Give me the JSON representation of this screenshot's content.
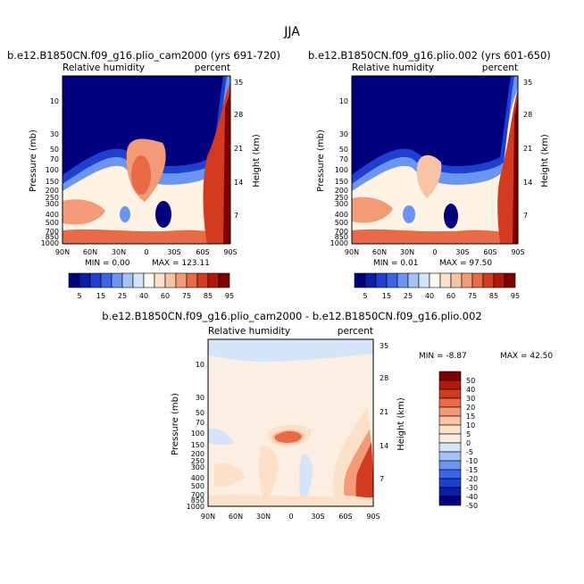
{
  "figure": {
    "title": "JJA"
  },
  "colors": {
    "abs_scale": [
      "#00007f",
      "#0a1fa6",
      "#1f3fd0",
      "#3a66e6",
      "#6a95f0",
      "#a6c2f5",
      "#d6e4fa",
      "#fff8ef",
      "#fde0c8",
      "#f9c4a4",
      "#f39b77",
      "#e86a47",
      "#d23b1f",
      "#b3190b",
      "#7f0000"
    ],
    "diff_scale": [
      "#00007f",
      "#0a1fa6",
      "#1f3fd0",
      "#3a66e6",
      "#6a95f0",
      "#a6c2f5",
      "#d6e4fa",
      "#fbeee2",
      "#fde0c8",
      "#f9c4a4",
      "#f39b77",
      "#e86a47",
      "#d23b1f",
      "#b3190b",
      "#7f0000"
    ]
  },
  "chart_data": [
    {
      "type": "heatmap",
      "name": "cam2000",
      "title": "b.e12.B1850CN.f09_g16.plio_cam2000 (yrs 691-720)",
      "left_label": "Relative humidity",
      "right_label": "percent",
      "ylabel": "Pressure (mb)",
      "y2label": "Height (km)",
      "xticks": [
        "90N",
        "60N",
        "30N",
        "0",
        "30S",
        "60S",
        "90S"
      ],
      "yticks": [
        "10",
        "30",
        "50",
        "70",
        "100",
        "150",
        "200",
        "250",
        "300",
        "400",
        "500",
        "700",
        "850",
        "1000"
      ],
      "y2ticks": [
        "35",
        "28",
        "21",
        "14",
        "7"
      ],
      "min_text": "MIN =     0.00",
      "max_text": "MAX =  123.11",
      "colorbar": {
        "labels": [
          "5",
          "15",
          "25",
          "40",
          "60",
          "75",
          "85",
          "95"
        ]
      }
    },
    {
      "type": "heatmap",
      "name": "plio002",
      "title": "b.e12.B1850CN.f09_g16.plio.002 (yrs 601-650)",
      "left_label": "Relative humidity",
      "right_label": "percent",
      "ylabel": "Pressure (mb)",
      "y2label": "Height (km)",
      "xticks": [
        "90N",
        "60N",
        "30N",
        "0",
        "30S",
        "60S",
        "90S"
      ],
      "yticks": [
        "10",
        "30",
        "50",
        "70",
        "100",
        "150",
        "200",
        "250",
        "300",
        "400",
        "500",
        "700",
        "850",
        "1000"
      ],
      "y2ticks": [
        "35",
        "28",
        "21",
        "14",
        "7"
      ],
      "min_text": "MIN =     0.01",
      "max_text": "MAX =   97.50",
      "colorbar": {
        "labels": [
          "5",
          "15",
          "25",
          "40",
          "60",
          "75",
          "85",
          "95"
        ]
      }
    },
    {
      "type": "heatmap",
      "name": "difference",
      "title": "b.e12.B1850CN.f09_g16.plio_cam2000 - b.e12.B1850CN.f09_g16.plio.002",
      "left_label": "Relative humidity",
      "right_label": "percent",
      "ylabel": "Pressure (mb)",
      "y2label": "Height (km)",
      "xticks": [
        "90N",
        "60N",
        "30N",
        "0",
        "30S",
        "60S",
        "90S"
      ],
      "yticks": [
        "10",
        "30",
        "50",
        "70",
        "100",
        "150",
        "200",
        "250",
        "300",
        "400",
        "500",
        "700",
        "850",
        "1000"
      ],
      "y2ticks": [
        "35",
        "28",
        "21",
        "14",
        "7"
      ],
      "min_text": "MIN =   -8.87",
      "max_text": "MAX =   42.50",
      "colorbar": {
        "labels": [
          "50",
          "40",
          "30",
          "20",
          "15",
          "10",
          "5",
          "0",
          "-5",
          "-10",
          "-15",
          "-20",
          "-30",
          "-40",
          "-50"
        ]
      }
    }
  ]
}
